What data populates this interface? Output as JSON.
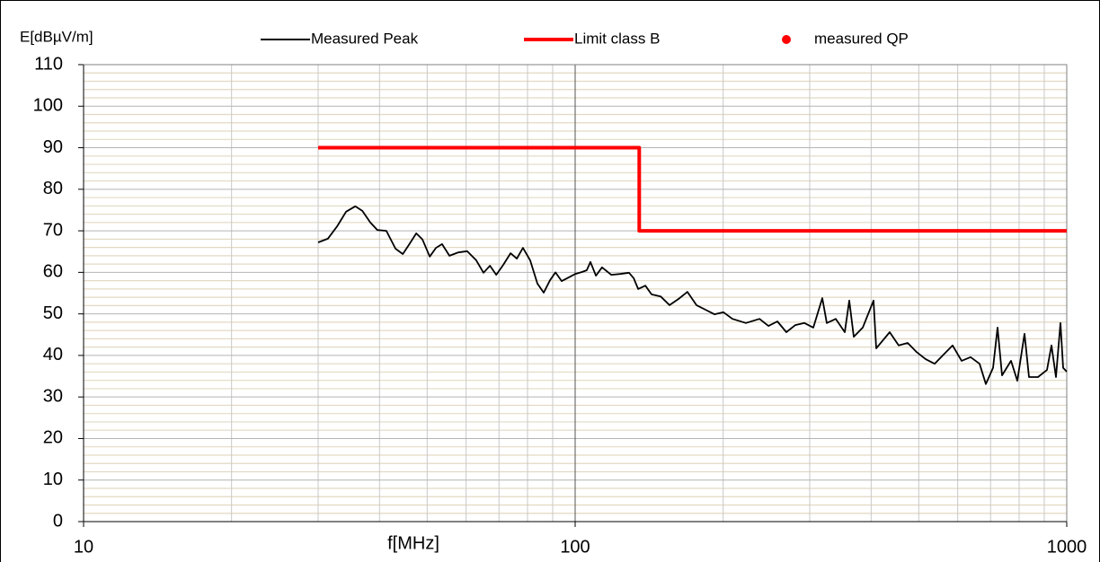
{
  "chart_data": {
    "type": "line",
    "ylabel": "E[dBµV/m]",
    "xlabel": "f[MHz]",
    "xscale": "log",
    "grid": true,
    "xlim": [
      10,
      1000
    ],
    "xticks": [
      10,
      100,
      1000
    ],
    "ylim": [
      0,
      110
    ],
    "yticks": [
      0,
      10,
      20,
      30,
      40,
      50,
      60,
      70,
      80,
      90,
      100,
      110
    ],
    "series": [
      {
        "name": "Measured Peak",
        "color": "#000000",
        "style": "line",
        "x": [
          30,
          31.4,
          32.8,
          34.2,
          35.7,
          36.9,
          38.3,
          39.6,
          41.3,
          43.1,
          44.6,
          45.9,
          47.5,
          48.9,
          50.6,
          52.1,
          53.6,
          55.5,
          57.8,
          60.3,
          62.9,
          65.1,
          67.1,
          69.1,
          71.4,
          73.9,
          76.1,
          78.3,
          81.0,
          83.8,
          86.3,
          88.9,
          91.2,
          93.9,
          97.1,
          100,
          103.4,
          105.6,
          107.4,
          110.2,
          113.4,
          118.4,
          123.4,
          128.7,
          131.5,
          134.3,
          138.9,
          143.0,
          149.2,
          155.6,
          162.3,
          169.2,
          176.5,
          184.1,
          192.0,
          200.3,
          208.9,
          222.5,
          237.1,
          247.3,
          257.8,
          268.9,
          280.5,
          292.6,
          305.1,
          318.2,
          325.0,
          339.0,
          353.5,
          361.1,
          368.7,
          384.6,
          404.5,
          409.6,
          436.4,
          455.1,
          474.7,
          495.1,
          516.4,
          538.6,
          561.6,
          585.8,
          611.0,
          637.3,
          664.7,
          684.6,
          708.0,
          723.1,
          738.5,
          770.3,
          793.3,
          820.5,
          838.0,
          874.0,
          911.6,
          931.0,
          950.8,
          971.0,
          983.4,
          1000
        ],
        "values": [
          67.2,
          68.1,
          71.1,
          74.6,
          75.9,
          74.8,
          72,
          70.2,
          70,
          65.7,
          64.4,
          66.6,
          69.4,
          67.9,
          63.8,
          65.9,
          66.8,
          64,
          64.8,
          65.1,
          62.9,
          59.9,
          61.6,
          59.4,
          61.8,
          64.6,
          63.3,
          65.9,
          62.9,
          57.3,
          55.1,
          58.1,
          60,
          57.9,
          58.8,
          59.6,
          60.1,
          60.5,
          62.5,
          59.2,
          61.2,
          59.4,
          59.6,
          59.9,
          58.6,
          56,
          56.8,
          54.7,
          54.2,
          52.1,
          53.6,
          55.3,
          52.1,
          51,
          49.9,
          50.4,
          48.8,
          47.8,
          48.8,
          47.1,
          48.2,
          45.6,
          47.3,
          47.8,
          46.7,
          53.8,
          47.8,
          48.8,
          45.6,
          53.2,
          44.5,
          46.7,
          53.2,
          41.7,
          45.6,
          42.4,
          43,
          40.8,
          39.1,
          38,
          40.2,
          42.4,
          38.7,
          39.6,
          38,
          33.1,
          37,
          46.7,
          35.2,
          38.7,
          33.9,
          45.2,
          34.8,
          34.8,
          36.5,
          42.4,
          34.8,
          47.8,
          37,
          36.1
        ]
      },
      {
        "name": "Limit class B",
        "color": "#ff0000",
        "style": "line",
        "x": [
          30,
          135,
          135,
          1000
        ],
        "values": [
          90,
          90,
          70,
          70
        ]
      },
      {
        "name": "measured QP",
        "color": "#ff0000",
        "style": "dot",
        "x": [],
        "values": []
      }
    ]
  }
}
